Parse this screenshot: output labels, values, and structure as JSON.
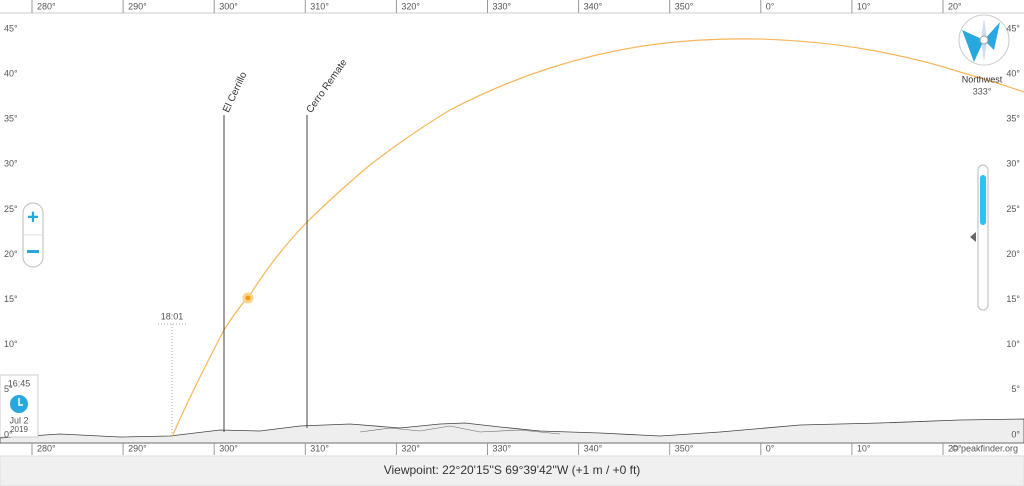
{
  "azimuth_labels": [
    "280°",
    "290°",
    "300°",
    "310°",
    "320°",
    "330°",
    "340°",
    "350°",
    "0°",
    "10°",
    "20°"
  ],
  "elevation_labels": [
    "45°",
    "40°",
    "35°",
    "30°",
    "25°",
    "20°",
    "15°",
    "10°",
    "5°",
    "0°"
  ],
  "peaks": [
    {
      "label": "El Cerrillo"
    },
    {
      "label": "Cerro Remate"
    }
  ],
  "sunset_time": "18:01",
  "clock": {
    "time": "16:45",
    "date": "Jul 2",
    "year": "2019"
  },
  "compass": {
    "direction": "Northwest",
    "bearing": "333°"
  },
  "viewpoint": "Viewpoint: 22°20'15''S 69°39'42''W (+1 m / +0 ft)",
  "credit": "© peakfinder.org"
}
